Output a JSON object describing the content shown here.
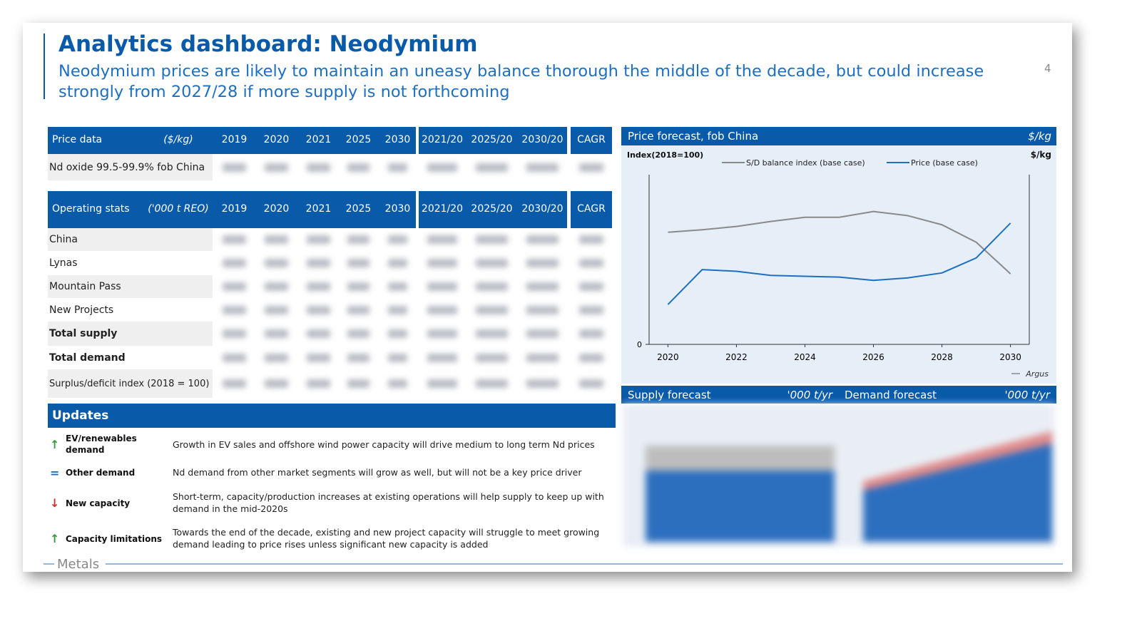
{
  "header": {
    "title": "Analytics dashboard: Neodymium",
    "subtitle": "Neodymium prices are likely to maintain an uneasy balance thorough the middle of the decade, but could increase strongly from 2027/28 if more supply is not forthcoming",
    "page_number": "4"
  },
  "price_table": {
    "label": "Price data",
    "unit": "($/kg)",
    "columns": [
      "2019",
      "2020",
      "2021",
      "2025",
      "2030",
      "2021/20",
      "2025/20",
      "2030/20",
      "CAGR"
    ],
    "rows": [
      "Nd oxide 99.5-99.9% fob China"
    ]
  },
  "ops_table": {
    "label": "Operating stats",
    "unit": "('000 t REO)",
    "columns": [
      "2019",
      "2020",
      "2021",
      "2025",
      "2030",
      "2021/20",
      "2025/20",
      "2030/20",
      "CAGR"
    ],
    "rows": [
      "China",
      "Lynas",
      "Mountain Pass",
      "New Projects",
      "Total supply",
      "Total demand",
      "Surplus/deficit index (2018 = 100)"
    ]
  },
  "updates": {
    "title": "Updates",
    "items": [
      {
        "label": "EV/renewables demand",
        "text": "Growth in EV sales and offshore wind power capacity will drive medium to long term Nd prices"
      },
      {
        "label": "Other demand",
        "text": "Nd demand from other market segments will grow as well, but will not be a key price driver"
      },
      {
        "label": "New capacity",
        "text": "Short-term, capacity/production increases at existing operations will help supply to keep up with demand in the mid-2020s"
      },
      {
        "label": "Capacity limitations",
        "text": "Towards the end of the decade, existing and new project capacity will struggle to meet growing demand leading to price rises unless significant new capacity is added"
      }
    ]
  },
  "chart_data": {
    "type": "line",
    "title": "Price forecast, fob China",
    "unit": "$/kg",
    "y_label": "Index(2018=100)",
    "y2_label": "$/kg",
    "source": "Argus",
    "x": [
      2020,
      2021,
      2022,
      2023,
      2024,
      2025,
      2026,
      2027,
      2028,
      2029,
      2030
    ],
    "xlim": [
      2019.45,
      2030.55
    ],
    "xticks": [
      2020,
      2022,
      2024,
      2026,
      2028,
      2030
    ],
    "ylim": [
      0,
      200
    ],
    "yticks": [
      0
    ],
    "series": [
      {
        "name": "S/D balance index (base case)",
        "color": "#8a8a8a",
        "values": [
          135,
          138,
          142,
          148,
          153,
          153,
          160,
          155,
          144,
          123,
          85
        ]
      },
      {
        "name": "Price (base case)",
        "color": "#1f6fc0",
        "values": [
          48,
          90,
          88,
          83,
          82,
          81,
          77,
          80,
          86,
          104,
          146
        ]
      }
    ]
  },
  "lower_panels": {
    "supply_title": "Supply forecast",
    "supply_unit": "'000 t/yr",
    "demand_title": "Demand forecast",
    "demand_unit": "'000 t/yr"
  },
  "footer": {
    "section": "Metals"
  }
}
